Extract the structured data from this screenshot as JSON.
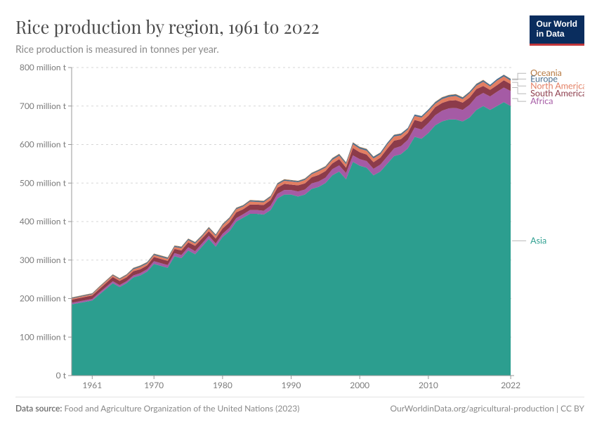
{
  "logo": {
    "line1": "Our World",
    "line2": "in Data"
  },
  "title": "Rice production by region, 1961 to 2022",
  "subtitle": "Rice production is measured in tonnes per year.",
  "footer": {
    "source_label": "Data source:",
    "source_value": "Food and Agriculture Organization of the United Nations (2023)",
    "right": "OurWorldinData.org/agricultural-production | CC BY"
  },
  "chart": {
    "type": "stacked-area",
    "background_color": "#ffffff",
    "grid_color": "#d6d6d6",
    "axis_color": "#999999",
    "label_color": "#7a7a7a",
    "tick_fontsize": 12,
    "legend_fontsize": 12.5,
    "xlim": [
      1958,
      2022.5
    ],
    "ylim": [
      0,
      800
    ],
    "yticks": [
      0,
      100,
      200,
      300,
      400,
      500,
      600,
      700,
      800
    ],
    "ytick_labels": [
      "0 t",
      "100 million t",
      "200 million t",
      "300 million t",
      "400 million t",
      "500 million t",
      "600 million t",
      "700 million t",
      "800 million t"
    ],
    "xticks": [
      1961,
      1970,
      1980,
      1990,
      2000,
      2010,
      2022
    ],
    "xtick_labels": [
      "1961",
      "1970",
      "1980",
      "1990",
      "2000",
      "2010",
      "2022"
    ],
    "years": [
      1958,
      1961,
      1962,
      1963,
      1964,
      1965,
      1966,
      1967,
      1968,
      1969,
      1970,
      1971,
      1972,
      1973,
      1974,
      1975,
      1976,
      1977,
      1978,
      1979,
      1980,
      1981,
      1982,
      1983,
      1984,
      1985,
      1986,
      1987,
      1988,
      1989,
      1990,
      1991,
      1992,
      1993,
      1994,
      1995,
      1996,
      1997,
      1998,
      1999,
      2000,
      2001,
      2002,
      2003,
      2004,
      2005,
      2006,
      2007,
      2008,
      2009,
      2010,
      2011,
      2012,
      2013,
      2014,
      2015,
      2016,
      2017,
      2018,
      2019,
      2020,
      2021,
      2022
    ],
    "series": [
      {
        "name": "Asia",
        "color": "#2c9e8f",
        "legend_color": "#2c9e8f",
        "values": [
          185,
          195,
          210,
          225,
          240,
          230,
          240,
          255,
          260,
          270,
          290,
          285,
          280,
          310,
          305,
          325,
          315,
          335,
          355,
          335,
          360,
          375,
          400,
          410,
          420,
          420,
          418,
          430,
          460,
          470,
          470,
          465,
          470,
          485,
          490,
          500,
          520,
          530,
          510,
          555,
          545,
          540,
          520,
          530,
          550,
          570,
          575,
          590,
          620,
          615,
          630,
          650,
          660,
          665,
          665,
          660,
          670,
          690,
          700,
          690,
          700,
          710,
          700
        ]
      },
      {
        "name": "Africa",
        "color": "#a55ba5",
        "legend_color": "#a55ba5",
        "values": [
          4,
          4,
          5,
          5,
          5,
          5,
          5,
          5,
          6,
          6,
          7,
          7,
          7,
          8,
          8,
          8,
          8,
          8,
          8,
          8,
          8,
          9,
          9,
          9,
          10,
          10,
          10,
          11,
          12,
          12,
          12,
          13,
          13,
          14,
          14,
          14,
          16,
          16,
          16,
          17,
          17,
          17,
          17,
          18,
          19,
          20,
          21,
          22,
          24,
          24,
          26,
          26,
          28,
          29,
          30,
          30,
          33,
          34,
          34,
          35,
          37,
          38,
          39
        ]
      },
      {
        "name": "South America",
        "color": "#8c3b4a",
        "legend_color": "#8c3b4a",
        "values": [
          8,
          9,
          9,
          10,
          11,
          11,
          10,
          11,
          10,
          10,
          11,
          11,
          11,
          11,
          12,
          13,
          14,
          13,
          12,
          13,
          14,
          14,
          15,
          13,
          14,
          14,
          15,
          15,
          16,
          16,
          14,
          16,
          16,
          16,
          17,
          17,
          15,
          16,
          14,
          19,
          18,
          17,
          17,
          18,
          20,
          20,
          18,
          18,
          20,
          20,
          19,
          21,
          20,
          20,
          20,
          19,
          19,
          20,
          18,
          17,
          17,
          19,
          18
        ]
      },
      {
        "name": "North America",
        "color": "#e37e62",
        "legend_color": "#e37e62",
        "values": [
          3,
          3,
          4,
          4,
          4,
          4,
          5,
          5,
          6,
          5,
          5,
          5,
          5,
          5,
          6,
          6,
          6,
          5,
          7,
          7,
          8,
          9,
          8,
          7,
          8,
          7,
          7,
          7,
          8,
          8,
          8,
          8,
          9,
          8,
          10,
          9,
          9,
          9,
          9,
          10,
          9,
          10,
          10,
          9,
          11,
          11,
          10,
          9,
          10,
          11,
          12,
          9,
          10,
          10,
          11,
          9,
          11,
          9,
          11,
          9,
          12,
          10,
          9
        ]
      },
      {
        "name": "Europe",
        "color": "#4a6f8f",
        "legend_color": "#4a6f8f",
        "values": [
          2,
          2,
          2,
          2,
          2,
          2,
          2,
          3,
          3,
          3,
          3,
          3,
          3,
          3,
          3,
          3,
          3,
          3,
          3,
          3,
          3,
          3,
          3,
          3,
          3,
          3,
          3,
          3,
          3,
          3,
          3,
          3,
          3,
          3,
          3,
          3,
          4,
          4,
          4,
          4,
          4,
          4,
          4,
          4,
          4,
          4,
          4,
          4,
          4,
          4,
          4,
          4,
          4,
          4,
          4,
          4,
          4,
          4,
          4,
          4,
          4,
          4,
          4
        ]
      },
      {
        "name": "Oceania",
        "color": "#b5773e",
        "legend_color": "#b5773e",
        "values": [
          1,
          1,
          1,
          1,
          1,
          1,
          1,
          1,
          1,
          1,
          1,
          1,
          1,
          1,
          1,
          1,
          1,
          1,
          1,
          1,
          1,
          1,
          1,
          1,
          1,
          1,
          1,
          1,
          1,
          1,
          1,
          1,
          1,
          1,
          1,
          1,
          1,
          1,
          1,
          1,
          1,
          1,
          1,
          0.5,
          0.5,
          0.5,
          1,
          0.2,
          0.1,
          0.1,
          0.3,
          1,
          1,
          1,
          1,
          1,
          0.5,
          1,
          1,
          0.1,
          0.1,
          0.5,
          1
        ]
      }
    ],
    "legend_order": [
      "Oceania",
      "Europe",
      "North America",
      "South America",
      "Africa",
      "Asia"
    ],
    "legend_y_positions": {
      "Oceania": 785,
      "Europe": 770,
      "North America": 752,
      "South America": 732,
      "Africa": 712,
      "Asia": 350
    }
  }
}
